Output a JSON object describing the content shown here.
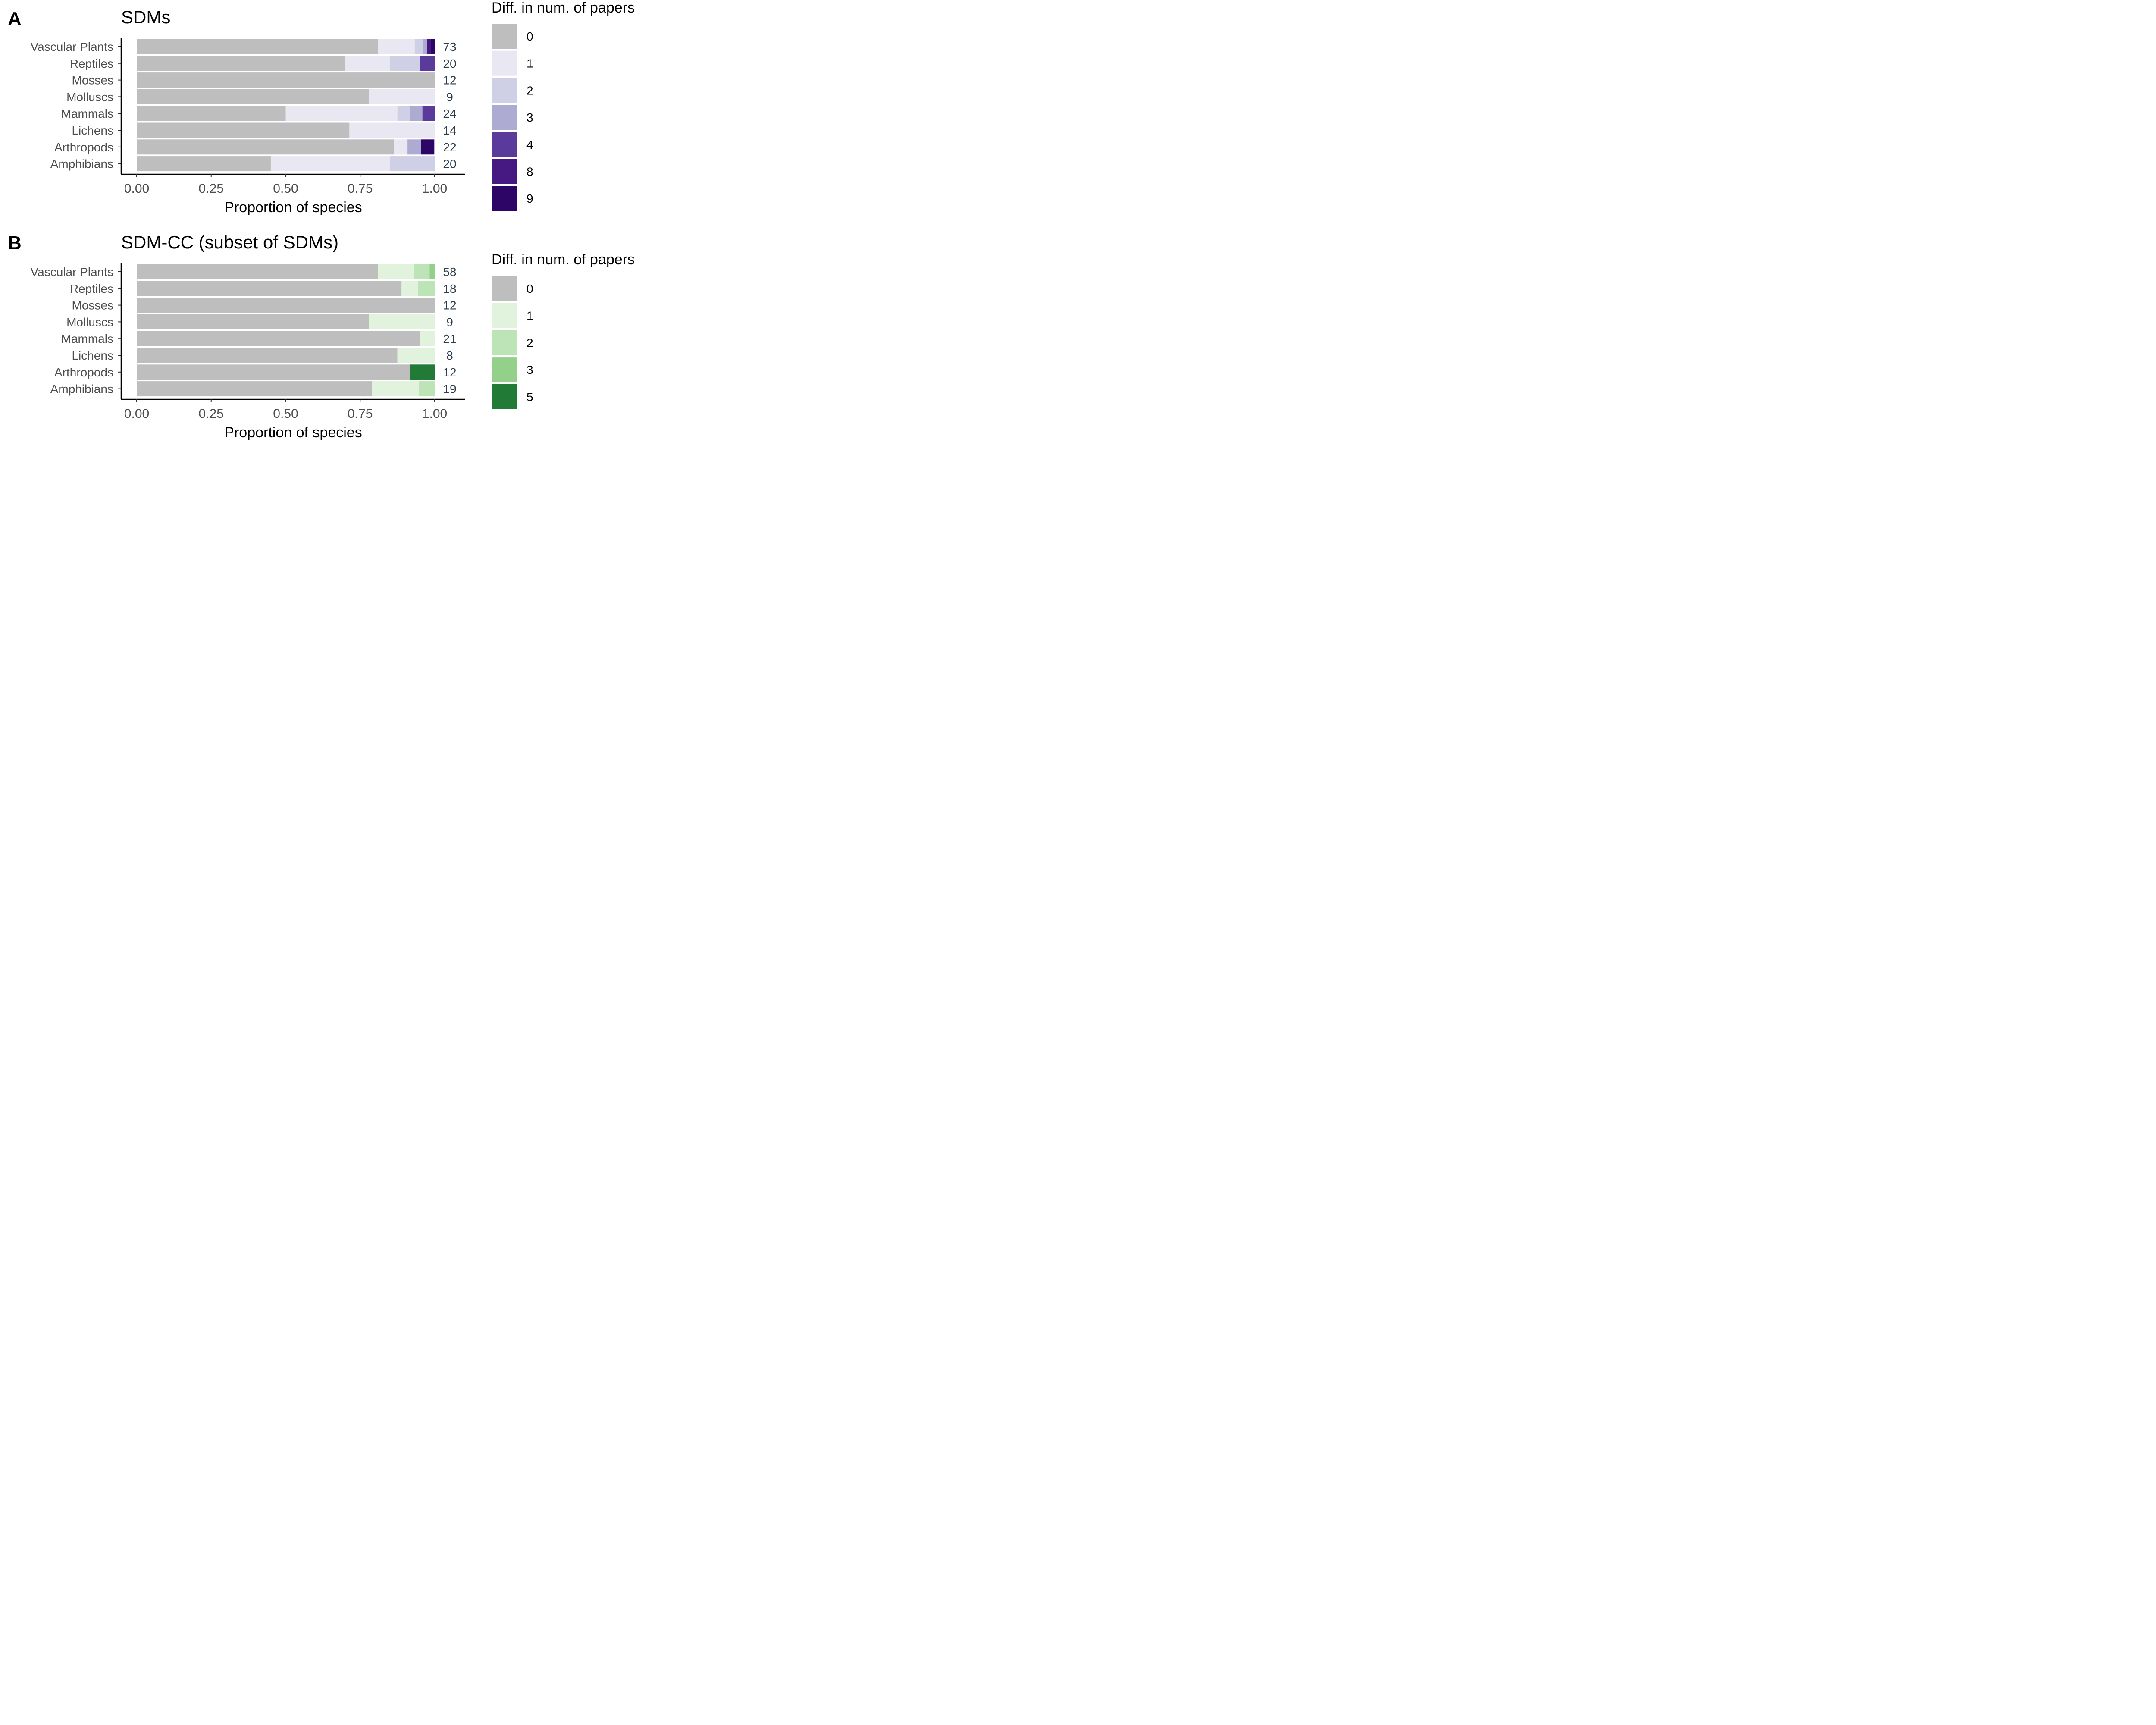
{
  "chart_data": [
    {
      "type": "bar",
      "orientation": "horizontal",
      "stacked": true,
      "panel_label": "A",
      "title": "SDMs",
      "xlabel": "Proportion of species",
      "ylabel": "",
      "xlim": [
        0,
        1
      ],
      "x_ticks": [
        "0.00",
        "0.25",
        "0.50",
        "0.75",
        "1.00"
      ],
      "grid": false,
      "legend_position": "right",
      "legend_title": "Diff. in num. of papers",
      "categories": [
        "Vascular Plants",
        "Reptiles",
        "Mosses",
        "Molluscs",
        "Mammals",
        "Lichens",
        "Arthropods",
        "Amphibians"
      ],
      "counts": [
        "73",
        "20",
        "12",
        "9",
        "24",
        "14",
        "22",
        "20"
      ],
      "series": [
        {
          "name": "0",
          "color": "#bebebe",
          "values": [
            0.81,
            0.7,
            1.0,
            0.78,
            0.5,
            0.714,
            0.864,
            0.45
          ]
        },
        {
          "name": "1",
          "color": "#e9e7f2",
          "values": [
            0.123,
            0.15,
            0,
            0.22,
            0.375,
            0.286,
            0.045,
            0.4
          ]
        },
        {
          "name": "2",
          "color": "#cfd0e6",
          "values": [
            0.027,
            0.1,
            0,
            0,
            0.042,
            0,
            0,
            0.15
          ]
        },
        {
          "name": "3",
          "color": "#adabd2",
          "values": [
            0.014,
            0,
            0,
            0,
            0.042,
            0,
            0.045,
            0
          ]
        },
        {
          "name": "4",
          "color": "#5a3b9b",
          "values": [
            0,
            0.05,
            0,
            0,
            0.042,
            0,
            0,
            0
          ]
        },
        {
          "name": "8",
          "color": "#451882",
          "values": [
            0.014,
            0,
            0,
            0,
            0,
            0,
            0,
            0
          ]
        },
        {
          "name": "9",
          "color": "#2c0566",
          "values": [
            0.014,
            0,
            0,
            0,
            0,
            0,
            0.045,
            0
          ]
        }
      ]
    },
    {
      "type": "bar",
      "orientation": "horizontal",
      "stacked": true,
      "panel_label": "B",
      "title": "SDM-CC (subset of SDMs)",
      "xlabel": "Proportion of species",
      "ylabel": "",
      "xlim": [
        0,
        1
      ],
      "x_ticks": [
        "0.00",
        "0.25",
        "0.50",
        "0.75",
        "1.00"
      ],
      "grid": false,
      "legend_position": "right",
      "legend_title": "Diff. in num. of papers",
      "categories": [
        "Vascular Plants",
        "Reptiles",
        "Mosses",
        "Molluscs",
        "Mammals",
        "Lichens",
        "Arthropods",
        "Amphibians"
      ],
      "counts": [
        "58",
        "18",
        "12",
        "9",
        "21",
        "8",
        "12",
        "19"
      ],
      "series": [
        {
          "name": "0",
          "color": "#bebebe",
          "values": [
            0.81,
            0.889,
            1.0,
            0.78,
            0.952,
            0.875,
            0.917,
            0.789
          ]
        },
        {
          "name": "1",
          "color": "#e1f3dd",
          "values": [
            0.121,
            0.056,
            0,
            0.22,
            0.048,
            0.125,
            0,
            0.158
          ]
        },
        {
          "name": "2",
          "color": "#bde4b6",
          "values": [
            0.052,
            0.055,
            0,
            0,
            0,
            0,
            0,
            0.053
          ]
        },
        {
          "name": "3",
          "color": "#93d18a",
          "values": [
            0.017,
            0,
            0,
            0,
            0,
            0,
            0,
            0
          ]
        },
        {
          "name": "5",
          "color": "#217b37",
          "values": [
            0,
            0,
            0,
            0,
            0,
            0,
            0.083,
            0
          ]
        }
      ]
    }
  ]
}
